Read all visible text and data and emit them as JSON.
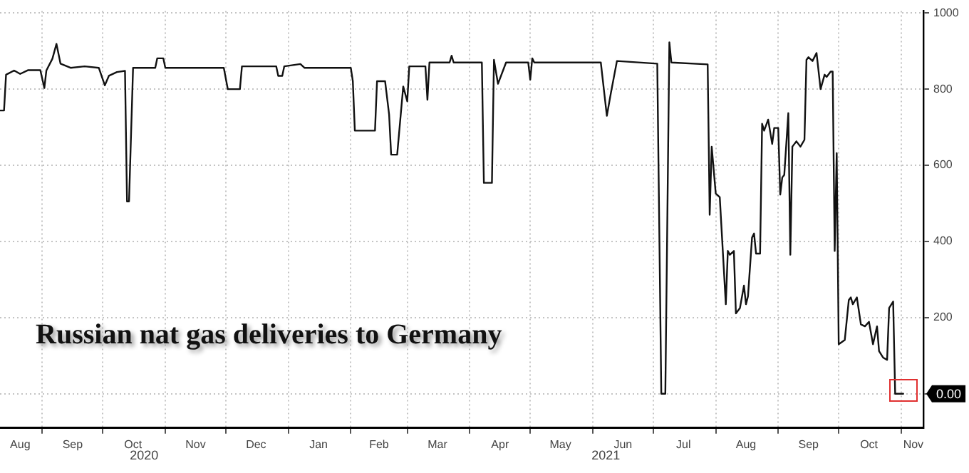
{
  "chart_data": {
    "type": "line",
    "title": "Russian nat gas deliveries to Germany",
    "x": [
      "2020-08-11",
      "2020-08-13",
      "2020-08-14",
      "2020-08-18",
      "2020-08-21",
      "2020-08-25",
      "2020-08-31",
      "2020-09-02",
      "2020-09-03",
      "2020-09-06",
      "2020-09-08",
      "2020-09-10",
      "2020-09-15",
      "2020-09-22",
      "2020-09-29",
      "2020-10-02",
      "2020-10-04",
      "2020-10-08",
      "2020-10-12",
      "2020-10-13",
      "2020-10-14",
      "2020-10-16",
      "2020-10-27",
      "2020-10-28",
      "2020-10-31",
      "2020-11-01",
      "2020-11-30",
      "2020-12-02",
      "2020-12-08",
      "2020-12-09",
      "2020-12-26",
      "2020-12-27",
      "2020-12-29",
      "2020-12-30",
      "2021-01-07",
      "2021-01-09",
      "2021-02-01",
      "2021-02-02",
      "2021-02-03",
      "2021-02-13",
      "2021-02-14",
      "2021-02-18",
      "2021-02-20",
      "2021-02-21",
      "2021-02-24",
      "2021-02-27",
      "2021-03-01",
      "2021-03-02",
      "2021-03-10",
      "2021-03-11",
      "2021-03-12",
      "2021-03-22",
      "2021-03-23",
      "2021-03-24",
      "2021-04-07",
      "2021-04-08",
      "2021-04-12",
      "2021-04-13",
      "2021-04-15",
      "2021-04-19",
      "2021-04-30",
      "2021-05-01",
      "2021-05-02",
      "2021-05-03",
      "2021-06-05",
      "2021-06-08",
      "2021-06-10",
      "2021-06-13",
      "2021-07-03",
      "2021-07-05",
      "2021-07-07",
      "2021-07-09",
      "2021-07-10",
      "2021-07-28",
      "2021-07-29",
      "2021-07-30",
      "2021-08-01",
      "2021-08-03",
      "2021-08-06",
      "2021-08-07",
      "2021-08-08",
      "2021-08-10",
      "2021-08-11",
      "2021-08-13",
      "2021-08-15",
      "2021-08-16",
      "2021-08-17",
      "2021-08-19",
      "2021-08-20",
      "2021-08-21",
      "2021-08-23",
      "2021-08-24",
      "2021-08-25",
      "2021-08-27",
      "2021-08-29",
      "2021-08-30",
      "2021-09-01",
      "2021-09-02",
      "2021-09-03",
      "2021-09-04",
      "2021-09-06",
      "2021-09-07",
      "2021-09-08",
      "2021-09-10",
      "2021-09-12",
      "2021-09-14",
      "2021-09-15",
      "2021-09-16",
      "2021-09-18",
      "2021-09-20",
      "2021-09-22",
      "2021-09-24",
      "2021-09-25",
      "2021-09-27",
      "2021-09-28",
      "2021-09-29",
      "2021-09-30",
      "2021-10-01",
      "2021-10-04",
      "2021-10-06",
      "2021-10-07",
      "2021-10-08",
      "2021-10-10",
      "2021-10-12",
      "2021-10-14",
      "2021-10-16",
      "2021-10-18",
      "2021-10-20",
      "2021-10-21",
      "2021-10-23",
      "2021-10-25",
      "2021-10-26",
      "2021-10-28",
      "2021-10-29",
      "2021-11-02"
    ],
    "series": [
      {
        "color": "#111111",
        "values": [
          744,
          744,
          838,
          849,
          840,
          850,
          850,
          803,
          849,
          880,
          919,
          867,
          856,
          860,
          856,
          810,
          835,
          845,
          848,
          505,
          505,
          856,
          856,
          881,
          881,
          856,
          856,
          800,
          800,
          860,
          860,
          835,
          835,
          860,
          866,
          856,
          856,
          821,
          691,
          691,
          821,
          821,
          733,
          628,
          628,
          807,
          768,
          860,
          860,
          772,
          870,
          870,
          888,
          870,
          870,
          554,
          554,
          877,
          814,
          870,
          870,
          825,
          881,
          870,
          870,
          730,
          790,
          874,
          867,
          0,
          0,
          923,
          870,
          865,
          470,
          649,
          526,
          516,
          235,
          375,
          365,
          375,
          211,
          225,
          284,
          235,
          256,
          410,
          421,
          368,
          368,
          709,
          691,
          720,
          656,
          698,
          698,
          523,
          568,
          575,
          737,
          365,
          649,
          663,
          649,
          667,
          877,
          884,
          874,
          895,
          800,
          838,
          832,
          846,
          846,
          375,
          632,
          130,
          141,
          246,
          253,
          235,
          253,
          182,
          177,
          189,
          130,
          177,
          112,
          95,
          89,
          225,
          242,
          0,
          0
        ]
      }
    ],
    "xlim": [
      "2020-08-11",
      "2021-11-12"
    ],
    "xticks": [
      {
        "value": "2020-08-21",
        "label": "Aug"
      },
      {
        "value": "2020-09-01",
        "label": null
      },
      {
        "value": "2020-09-16",
        "label": "Sep"
      },
      {
        "value": "2020-10-01",
        "label": null
      },
      {
        "value": "2020-10-16",
        "label": "Oct"
      },
      {
        "value": "2020-11-01",
        "label": null
      },
      {
        "value": "2020-11-16",
        "label": "Nov"
      },
      {
        "value": "2020-12-01",
        "label": null
      },
      {
        "value": "2020-12-16",
        "label": "Dec"
      },
      {
        "value": "2021-01-01",
        "label": null
      },
      {
        "value": "2021-01-16",
        "label": "Jan"
      },
      {
        "value": "2021-02-01",
        "label": null
      },
      {
        "value": "2021-02-15",
        "label": "Feb"
      },
      {
        "value": "2021-03-01",
        "label": null
      },
      {
        "value": "2021-03-16",
        "label": "Mar"
      },
      {
        "value": "2021-04-01",
        "label": null
      },
      {
        "value": "2021-04-16",
        "label": "Apr"
      },
      {
        "value": "2021-05-01",
        "label": null
      },
      {
        "value": "2021-05-16",
        "label": "May"
      },
      {
        "value": "2021-06-01",
        "label": null
      },
      {
        "value": "2021-06-16",
        "label": "Jun"
      },
      {
        "value": "2021-07-01",
        "label": null
      },
      {
        "value": "2021-07-16",
        "label": "Jul"
      },
      {
        "value": "2021-08-01",
        "label": null
      },
      {
        "value": "2021-08-16",
        "label": "Aug"
      },
      {
        "value": "2021-09-01",
        "label": null
      },
      {
        "value": "2021-09-16",
        "label": "Sep"
      },
      {
        "value": "2021-10-01",
        "label": null
      },
      {
        "value": "2021-10-16",
        "label": "Oct"
      },
      {
        "value": "2021-11-01",
        "label": null
      },
      {
        "value": "2021-11-07",
        "label": "Nov"
      }
    ],
    "ylim": [
      -90,
      1005
    ],
    "yticks": [
      {
        "value": 0,
        "label": null
      },
      200,
      400,
      600,
      800,
      1000
    ],
    "annotations": [
      "2020",
      "2021",
      {
        "text": "0.00",
        "x": "2021-11-02",
        "y": 0
      }
    ],
    "grid": true,
    "legend": false,
    "marker": "none",
    "line_style": "solid"
  }
}
